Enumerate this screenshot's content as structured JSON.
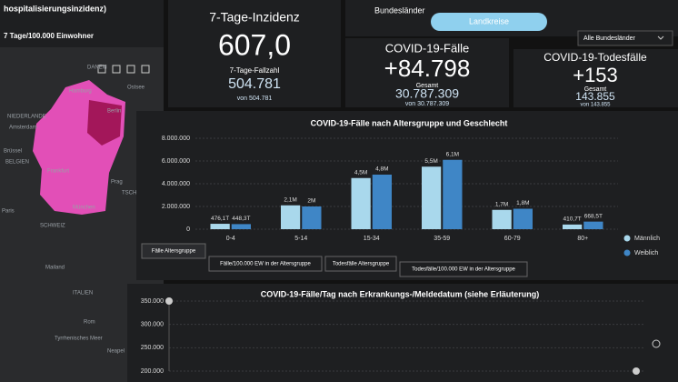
{
  "map_panel": {
    "header": "hospitalisierungsinzidenz)",
    "subtitle": "7 Tage/100.000 Einwohner",
    "labels": [
      "DANEM",
      "Ostsee",
      "Hamburg",
      "Berlin",
      "NIEDERLANDE",
      "Amsterdam",
      "Brüssel",
      "BELGIEN",
      "Frankfurt",
      "Prag",
      "TSCHECH",
      "München",
      "SCHWEIZ",
      "Paris",
      "ITALIEN",
      "Mailand",
      "Rom",
      "Tyrrhenisches Meer",
      "Neapel"
    ]
  },
  "tabs": [
    "Bundesländer",
    "Landkreise"
  ],
  "dropdown": "Alle Bundesländer",
  "cards": [
    {
      "title": "7-Tage-Inzidenz",
      "value": "607,0",
      "sub_label": "7-Tage-Fallzahl",
      "sub_value": "504.781",
      "note": "von 504.781"
    },
    {
      "title": "COVID-19-Fälle",
      "value": "+84.798",
      "sub_label": "Gesamt",
      "sub_value": "30.787.309",
      "note": "von 30.787.309"
    },
    {
      "title": "COVID-19-Todesfälle",
      "value": "+153",
      "sub_label": "Gesamt",
      "sub_value": "143.855",
      "note": "von 143.855"
    }
  ],
  "chart_tabs": [
    "Fälle Altersgruppe",
    "Fälle/100.000 EW in der Altersgruppe",
    "Todesfälle Altersgruppe",
    "Todesfälle/100.000 EW in der Altersgruppe"
  ],
  "chart_data": [
    {
      "type": "bar",
      "title": "COVID-19-Fälle nach Altersgruppe und Geschlecht",
      "categories": [
        "0-4",
        "5-14",
        "15-34",
        "35-59",
        "60-79",
        "80+"
      ],
      "series": [
        {
          "name": "Männlich",
          "color": "#a9d8ec",
          "values": [
            476100,
            2100000,
            4500000,
            5500000,
            1700000,
            410700
          ],
          "value_labels": [
            "476,1T",
            "2,1M",
            "4,5M",
            "5,5M",
            "1,7M",
            "410,7T"
          ]
        },
        {
          "name": "Weiblich",
          "color": "#3f86c6",
          "values": [
            448300,
            2000000,
            4800000,
            6100000,
            1800000,
            668500
          ],
          "value_labels": [
            "448,3T",
            "2M",
            "4,8M",
            "6,1M",
            "1,8M",
            "668,5T"
          ]
        }
      ],
      "ylim": [
        0,
        8000000
      ],
      "yticks": [
        0,
        {
          "value": 2000000,
          "label": "2.000.000"
        },
        {
          "value": 4000000,
          "label": "4.000.000"
        },
        {
          "value": 6000000,
          "label": "6.000.000"
        },
        {
          "value": 8000000,
          "label": "8.000.000"
        }
      ],
      "grid": true
    },
    {
      "type": "line",
      "title": "COVID-19-Fälle/Tag nach Erkrankungs-/Meldedatum (siehe Erläuterung)",
      "ylim": [
        200000,
        350000
      ],
      "yticks": [
        {
          "value": 350000,
          "label": "350.000"
        },
        {
          "value": 300000,
          "label": "300.000"
        },
        {
          "value": 250000,
          "label": "250.000"
        },
        {
          "value": 200000,
          "label": "200.000"
        }
      ],
      "grid": true
    }
  ]
}
